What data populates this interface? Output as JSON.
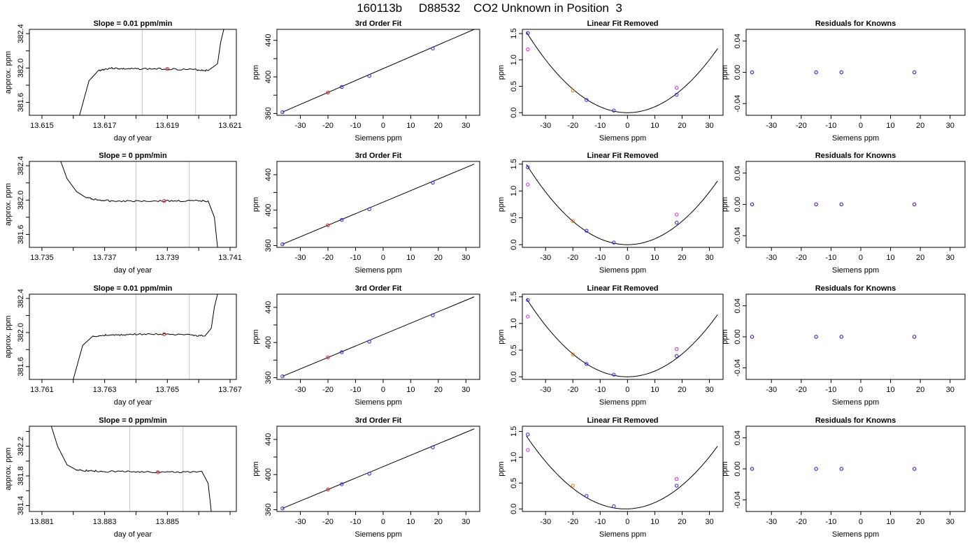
{
  "page_title": "160113b     D88532    CO2 Unknown in Position  3",
  "chart_data": [
    {
      "type": "line",
      "title": "Slope =  0.01  ppm/min",
      "xlabel": "day of year",
      "ylabel": "approx. ppm",
      "xlim": [
        13.6146,
        13.6212
      ],
      "ylim": [
        381.45,
        382.45
      ],
      "xticks": [
        13.615,
        13.617,
        13.619,
        13.621
      ],
      "xtick_labels": [
        "13.615",
        "13.617",
        "13.619",
        "13.621"
      ],
      "yticks": [
        381.6,
        382.0,
        382.4
      ],
      "ytick_labels": [
        "381.6",
        "382.0",
        "382.4"
      ],
      "vlines": [
        13.6182,
        13.6199
      ],
      "trace": {
        "x": [
          13.6162,
          13.6165,
          13.6168,
          13.6172,
          13.6176,
          13.6182,
          13.619,
          13.6199,
          13.6203,
          13.6206,
          13.6207,
          13.6208
        ],
        "y": [
          381.45,
          381.85,
          381.97,
          382.0,
          381.99,
          381.99,
          381.99,
          381.98,
          381.97,
          382.05,
          382.3,
          382.45
        ]
      },
      "marker": {
        "x": 13.619,
        "y": 381.99
      }
    },
    {
      "type": "scatter",
      "title": "3rd Order Fit",
      "xlabel": "Siemens ppm",
      "ylabel": "ppm",
      "xlim": [
        -38.5,
        35
      ],
      "ylim": [
        358,
        452
      ],
      "xticks": [
        -30,
        -20,
        -10,
        0,
        10,
        20,
        30
      ],
      "xtick_labels": [
        "-30",
        "-20",
        "-10",
        "0",
        "10",
        "20",
        "30"
      ],
      "yticks": [
        360,
        400,
        440
      ],
      "ytick_labels": [
        "360",
        "400",
        "440"
      ],
      "line": {
        "x": [
          -36.5,
          33
        ],
        "y": [
          361.5,
          452
        ]
      },
      "points_blue": {
        "x": [
          -36.5,
          -15,
          -5,
          18
        ],
        "y": [
          361.5,
          389,
          401,
          431
        ]
      },
      "points_red": {
        "x": [
          -20
        ],
        "y": [
          383
        ]
      }
    },
    {
      "type": "scatter",
      "title": "Linear Fit Removed",
      "xlabel": "Siemens ppm",
      "ylabel": "ppm",
      "xlim": [
        -38.5,
        35
      ],
      "ylim": [
        -0.05,
        1.58
      ],
      "xticks": [
        -30,
        -20,
        -10,
        0,
        10,
        20,
        30
      ],
      "xtick_labels": [
        "-30",
        "-20",
        "-10",
        "0",
        "10",
        "20",
        "30"
      ],
      "yticks": [
        0.0,
        0.5,
        1.0,
        1.5
      ],
      "ytick_labels": [
        "0.0",
        "0.5",
        "1.0",
        "1.5"
      ],
      "curve": {
        "a": 0.001115,
        "b": 0.0,
        "c": 1e-05,
        "x0": 0,
        "xmin": -37,
        "xmax": 33
      },
      "points_blue": {
        "x": [
          -36.5,
          -15,
          -5,
          18
        ],
        "y": [
          1.51,
          0.24,
          0.04,
          0.34
        ]
      },
      "points_magenta": {
        "x": [
          -36.5,
          18
        ],
        "y": [
          1.2,
          0.47
        ]
      },
      "points_orange": {
        "x": [
          -20
        ],
        "y": [
          0.42
        ]
      }
    },
    {
      "type": "scatter",
      "title": "Residuals for Knowns",
      "xlabel": "Siemens ppm",
      "ylabel": "ppm",
      "xlim": [
        -38.5,
        35
      ],
      "ylim": [
        -0.055,
        0.055
      ],
      "xticks": [
        -30,
        -20,
        -10,
        0,
        10,
        20,
        30
      ],
      "xtick_labels": [
        "-30",
        "-20",
        "-10",
        "0",
        "10",
        "20",
        "30"
      ],
      "yticks": [
        -0.04,
        0.0,
        0.04
      ],
      "ytick_labels": [
        "-0.04",
        "0.00",
        "0.04"
      ],
      "points_blue": {
        "x": [
          -36.5,
          -15,
          -6.5,
          18
        ],
        "y": [
          0,
          0,
          0,
          0
        ]
      },
      "points_magenta": {
        "x": [
          -36.5,
          -15,
          -6.5,
          18
        ],
        "y": [
          0,
          0,
          0,
          0
        ]
      }
    },
    {
      "type": "line",
      "title": "Slope =  0  ppm/min",
      "xlabel": "day of year",
      "ylabel": "approx. ppm",
      "xlim": [
        13.7346,
        13.7412
      ],
      "ylim": [
        381.45,
        382.45
      ],
      "xticks": [
        13.735,
        13.737,
        13.739,
        13.741
      ],
      "xtick_labels": [
        "13.735",
        "13.737",
        "13.739",
        "13.741"
      ],
      "yticks": [
        381.6,
        382.0,
        382.4
      ],
      "ytick_labels": [
        "381.6",
        "382.0",
        "382.4"
      ],
      "vlines": [
        13.738,
        13.7397
      ],
      "trace": {
        "x": [
          13.7356,
          13.7358,
          13.7361,
          13.7364,
          13.7368,
          13.7372,
          13.738,
          13.7389,
          13.7397,
          13.7403,
          13.7405,
          13.7406
        ],
        "y": [
          382.45,
          382.25,
          382.1,
          382.03,
          382.0,
          381.99,
          381.99,
          381.99,
          381.99,
          381.99,
          381.8,
          381.45
        ]
      },
      "marker": {
        "x": 13.7389,
        "y": 381.99
      }
    },
    {
      "type": "scatter",
      "title": "3rd Order Fit",
      "xlabel": "Siemens ppm",
      "ylabel": "ppm",
      "xlim": [
        -38.5,
        35
      ],
      "ylim": [
        358,
        455
      ],
      "xticks": [
        -30,
        -20,
        -10,
        0,
        10,
        20,
        30
      ],
      "xtick_labels": [
        "-30",
        "-20",
        "-10",
        "0",
        "10",
        "20",
        "30"
      ],
      "yticks": [
        360,
        400,
        440
      ],
      "ytick_labels": [
        "360",
        "400",
        "440"
      ],
      "line": {
        "x": [
          -36.5,
          33
        ],
        "y": [
          361.5,
          452
        ]
      },
      "points_blue": {
        "x": [
          -36.5,
          -15,
          -5,
          18
        ],
        "y": [
          361.5,
          389,
          401,
          431
        ]
      },
      "points_red": {
        "x": [
          -20
        ],
        "y": [
          383
        ]
      }
    },
    {
      "type": "scatter",
      "title": "Linear Fit Removed",
      "xlabel": "Siemens ppm",
      "ylabel": "ppm",
      "xlim": [
        -38.5,
        35
      ],
      "ylim": [
        -0.05,
        1.55
      ],
      "xticks": [
        -30,
        -20,
        -10,
        0,
        10,
        20,
        30
      ],
      "xtick_labels": [
        "-30",
        "-20",
        "-10",
        "0",
        "10",
        "20",
        "30"
      ],
      "yticks": [
        0.0,
        0.5,
        1.0,
        1.5
      ],
      "ytick_labels": [
        "0.0",
        "0.5",
        "1.0",
        "1.5"
      ],
      "curve": {
        "a": 0.00109,
        "b": 0.0,
        "c": 1e-05,
        "x0": 0,
        "xmin": -37,
        "xmax": 33
      },
      "points_blue": {
        "x": [
          -36.5,
          -15,
          -5,
          18
        ],
        "y": [
          1.44,
          0.26,
          0.04,
          0.41
        ]
      },
      "points_magenta": {
        "x": [
          -36.5,
          18
        ],
        "y": [
          1.12,
          0.56
        ]
      },
      "points_orange": {
        "x": [
          -20
        ],
        "y": [
          0.44
        ]
      }
    },
    {
      "type": "scatter",
      "title": "Residuals for Knowns",
      "xlabel": "Siemens ppm",
      "ylabel": "ppm",
      "xlim": [
        -38.5,
        35
      ],
      "ylim": [
        -0.055,
        0.055
      ],
      "xticks": [
        -30,
        -20,
        -10,
        0,
        10,
        20,
        30
      ],
      "xtick_labels": [
        "-30",
        "-20",
        "-10",
        "0",
        "10",
        "20",
        "30"
      ],
      "yticks": [
        -0.04,
        0.0,
        0.04
      ],
      "ytick_labels": [
        "-0.04",
        "0.00",
        "0.04"
      ],
      "points_blue": {
        "x": [
          -36.5,
          -15,
          -6.5,
          18
        ],
        "y": [
          0,
          0,
          0,
          0
        ]
      },
      "points_magenta": {
        "x": [
          -36.5,
          -15,
          -6.5,
          18
        ],
        "y": [
          0,
          0,
          0,
          0
        ]
      }
    },
    {
      "type": "line",
      "title": "Slope =  0.01  ppm/min",
      "xlabel": "day of year",
      "ylabel": "approx. ppm",
      "xlim": [
        13.7606,
        13.7672
      ],
      "ylim": [
        381.45,
        382.45
      ],
      "xticks": [
        13.761,
        13.763,
        13.765,
        13.767
      ],
      "xtick_labels": [
        "13.761",
        "13.763",
        "13.765",
        "13.767"
      ],
      "yticks": [
        381.6,
        382.0,
        382.4
      ],
      "ytick_labels": [
        "381.6",
        "382.0",
        "382.4"
      ],
      "vlines": [
        13.764,
        13.7657
      ],
      "trace": {
        "x": [
          13.762,
          13.7623,
          13.7626,
          13.763,
          13.7634,
          13.764,
          13.7649,
          13.7657,
          13.7662,
          13.7664,
          13.7665,
          13.7666
        ],
        "y": [
          381.45,
          381.85,
          381.95,
          381.97,
          381.97,
          381.98,
          381.98,
          381.97,
          381.96,
          382.05,
          382.3,
          382.45
        ]
      },
      "marker": {
        "x": 13.7649,
        "y": 381.98
      }
    },
    {
      "type": "scatter",
      "title": "3rd Order Fit",
      "xlabel": "Siemens ppm",
      "ylabel": "ppm",
      "xlim": [
        -38.5,
        35
      ],
      "ylim": [
        358,
        455
      ],
      "xticks": [
        -30,
        -20,
        -10,
        0,
        10,
        20,
        30
      ],
      "xtick_labels": [
        "-30",
        "-20",
        "-10",
        "0",
        "10",
        "20",
        "30"
      ],
      "yticks": [
        360,
        400,
        440
      ],
      "ytick_labels": [
        "360",
        "400",
        "440"
      ],
      "line": {
        "x": [
          -36.5,
          33
        ],
        "y": [
          361.5,
          452
        ]
      },
      "points_blue": {
        "x": [
          -36.5,
          -15,
          -5,
          18
        ],
        "y": [
          361.5,
          389,
          401,
          431
        ]
      },
      "points_red": {
        "x": [
          -20
        ],
        "y": [
          383
        ]
      }
    },
    {
      "type": "scatter",
      "title": "Linear Fit Removed",
      "xlabel": "Siemens ppm",
      "ylabel": "ppm",
      "xlim": [
        -38.5,
        35
      ],
      "ylim": [
        -0.05,
        1.55
      ],
      "xticks": [
        -30,
        -20,
        -10,
        0,
        10,
        20,
        30
      ],
      "xtick_labels": [
        "-30",
        "-20",
        "-10",
        "0",
        "10",
        "20",
        "30"
      ],
      "yticks": [
        0.0,
        0.5,
        1.0,
        1.5
      ],
      "ytick_labels": [
        "0.0",
        "0.5",
        "1.0",
        "1.5"
      ],
      "curve": {
        "a": 0.00107,
        "b": 0.0,
        "c": 1e-05,
        "x0": 0,
        "xmin": -37,
        "xmax": 33
      },
      "points_blue": {
        "x": [
          -36.5,
          -15,
          -5,
          18
        ],
        "y": [
          1.44,
          0.24,
          0.04,
          0.39
        ]
      },
      "points_magenta": {
        "x": [
          -36.5,
          18
        ],
        "y": [
          1.13,
          0.52
        ]
      },
      "points_orange": {
        "x": [
          -20
        ],
        "y": [
          0.42
        ]
      }
    },
    {
      "type": "scatter",
      "title": "Residuals for Knowns",
      "xlabel": "Siemens ppm",
      "ylabel": "ppm",
      "xlim": [
        -38.5,
        35
      ],
      "ylim": [
        -0.055,
        0.055
      ],
      "xticks": [
        -30,
        -20,
        -10,
        0,
        10,
        20,
        30
      ],
      "xtick_labels": [
        "-30",
        "-20",
        "-10",
        "0",
        "10",
        "20",
        "30"
      ],
      "yticks": [
        -0.04,
        0.0,
        0.04
      ],
      "ytick_labels": [
        "-0.04",
        "0.00",
        "0.04"
      ],
      "points_blue": {
        "x": [
          -36.5,
          -15,
          -6.5,
          18
        ],
        "y": [
          0,
          0,
          0,
          0
        ]
      },
      "points_magenta": {
        "x": [
          -36.5,
          -15,
          -6.5,
          18
        ],
        "y": [
          0,
          0,
          0,
          0
        ]
      }
    },
    {
      "type": "line",
      "title": "Slope =  0  ppm/min",
      "xlabel": "day of year",
      "ylabel": "approx. ppm",
      "xlim": [
        13.8806,
        13.8872
      ],
      "ylim": [
        381.32,
        382.47
      ],
      "xticks": [
        13.881,
        13.883,
        13.885
      ],
      "xtick_labels": [
        "13.881",
        "13.883",
        "13.885"
      ],
      "yticks": [
        381.4,
        381.8,
        382.2
      ],
      "ytick_labels": [
        "381.4",
        "381.8",
        "382.2"
      ],
      "vlines": [
        13.8838,
        13.8855
      ],
      "trace": {
        "x": [
          13.8813,
          13.8815,
          13.8818,
          13.8821,
          13.8825,
          13.883,
          13.8838,
          13.8847,
          13.8855,
          13.8861,
          13.8863,
          13.8864
        ],
        "y": [
          382.47,
          382.2,
          381.95,
          381.88,
          381.87,
          381.86,
          381.86,
          381.85,
          381.85,
          381.86,
          381.7,
          381.32
        ]
      },
      "marker": {
        "x": 13.8847,
        "y": 381.85
      }
    },
    {
      "type": "scatter",
      "title": "3rd Order Fit",
      "xlabel": "Siemens ppm",
      "ylabel": "ppm",
      "xlim": [
        -38.5,
        35
      ],
      "ylim": [
        358,
        455
      ],
      "xticks": [
        -30,
        -20,
        -10,
        0,
        10,
        20,
        30
      ],
      "xtick_labels": [
        "-30",
        "-20",
        "-10",
        "0",
        "10",
        "20",
        "30"
      ],
      "yticks": [
        360,
        400,
        440
      ],
      "ytick_labels": [
        "360",
        "400",
        "440"
      ],
      "line": {
        "x": [
          -36.5,
          33
        ],
        "y": [
          361.5,
          452
        ]
      },
      "points_blue": {
        "x": [
          -36.5,
          -15,
          -5,
          18
        ],
        "y": [
          361.5,
          389,
          401,
          431
        ]
      },
      "points_red": {
        "x": [
          -20
        ],
        "y": [
          383
        ]
      }
    },
    {
      "type": "scatter",
      "title": "Linear Fit Removed",
      "xlabel": "Siemens ppm",
      "ylabel": "ppm",
      "xlim": [
        -38.5,
        35
      ],
      "ylim": [
        -0.05,
        1.6
      ],
      "xticks": [
        -30,
        -20,
        -10,
        0,
        10,
        20,
        30
      ],
      "xtick_labels": [
        "-30",
        "-20",
        "-10",
        "0",
        "10",
        "20",
        "30"
      ],
      "yticks": [
        0.0,
        0.5,
        1.0,
        1.5
      ],
      "ytick_labels": [
        "0.0",
        "0.5",
        "1.0",
        "1.5"
      ],
      "curve": {
        "a": 0.00107,
        "b": 0.0015,
        "c": 1e-05,
        "x0": 0,
        "xmin": -37,
        "xmax": 33
      },
      "points_blue": {
        "x": [
          -36.5,
          -15,
          -5,
          18
        ],
        "y": [
          1.44,
          0.25,
          0.05,
          0.45
        ]
      },
      "points_magenta": {
        "x": [
          -36.5,
          18
        ],
        "y": [
          1.14,
          0.58
        ]
      },
      "points_orange": {
        "x": [
          -20
        ],
        "y": [
          0.45
        ]
      }
    },
    {
      "type": "scatter",
      "title": "Residuals for Knowns",
      "xlabel": "Siemens ppm",
      "ylabel": "ppm",
      "xlim": [
        -38.5,
        35
      ],
      "ylim": [
        -0.055,
        0.055
      ],
      "xticks": [
        -30,
        -20,
        -10,
        0,
        10,
        20,
        30
      ],
      "xtick_labels": [
        "-30",
        "-20",
        "-10",
        "0",
        "10",
        "20",
        "30"
      ],
      "yticks": [
        -0.04,
        0.0,
        0.04
      ],
      "ytick_labels": [
        "-0.04",
        "0.00",
        "0.04"
      ],
      "points_blue": {
        "x": [
          -36.5,
          -15,
          -6.5,
          18
        ],
        "y": [
          0,
          0,
          0,
          0
        ]
      },
      "points_magenta": {
        "x": [
          -36.5,
          -15,
          -6.5,
          18
        ],
        "y": [
          0,
          0,
          0,
          0
        ]
      }
    }
  ],
  "colors": {
    "blue": "#2222ee",
    "red": "#ee2222",
    "magenta": "#dd22dd",
    "orange": "#ee7700",
    "vline": "#c8c8c8",
    "ink": "#000000"
  }
}
